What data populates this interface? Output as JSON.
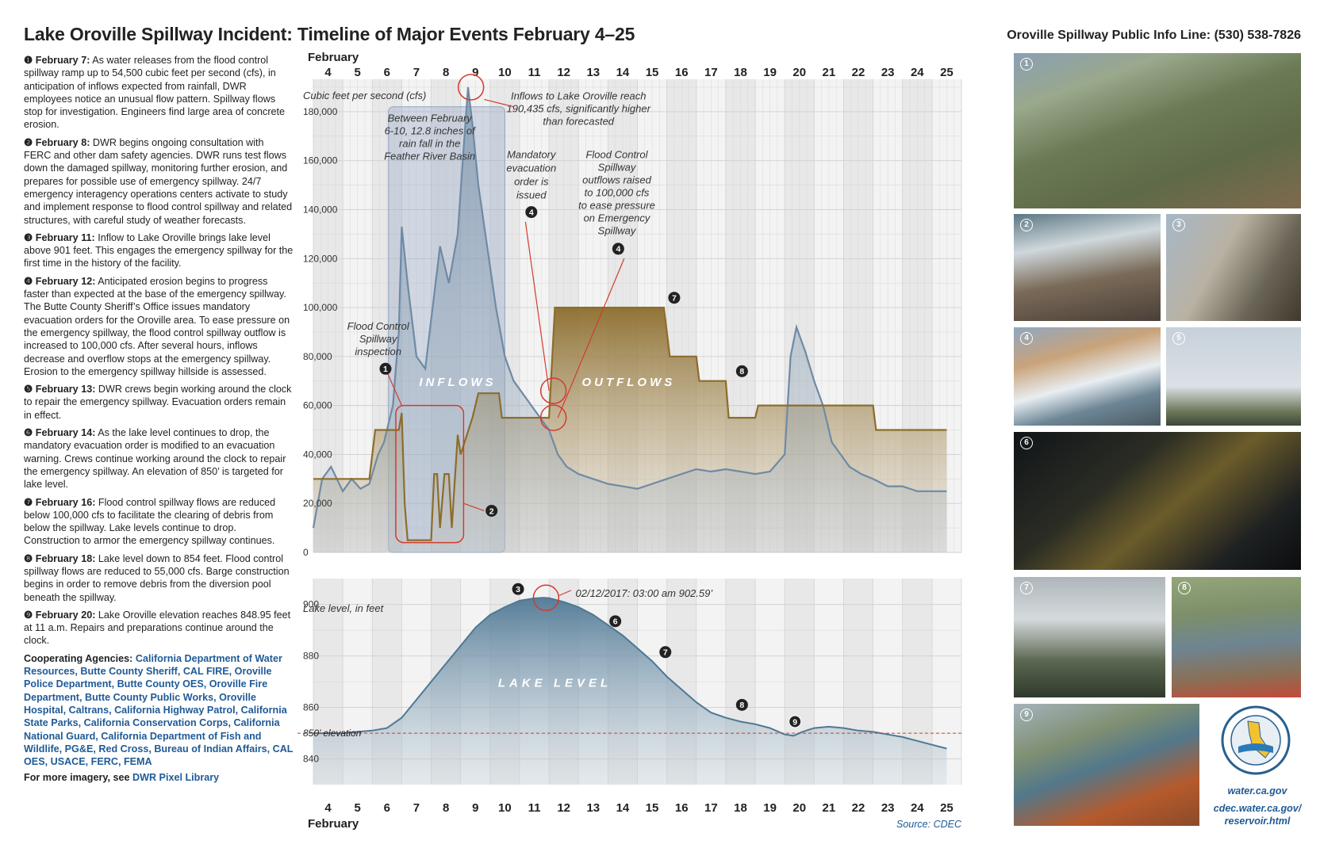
{
  "title": "Lake Oroville Spillway Incident: Timeline of Major Events February 4–25",
  "info_line": {
    "label": "Oroville Spillway Public Info Line:",
    "phone": "(530) 538-7826"
  },
  "events": [
    {
      "num": "❶",
      "date": "February 7:",
      "text": "As water releases from the flood control spillway ramp up to 54,500 cubic feet per second (cfs), in anticipation of inflows expected from rainfall, DWR employees notice an unusual flow pattern. Spillway flows stop for investigation. Engineers find large area of concrete erosion."
    },
    {
      "num": "❷",
      "date": "February 8:",
      "text": "DWR begins ongoing consultation with FERC and other dam safety agencies. DWR runs test flows down the damaged spillway, monitoring further erosion, and prepares for possible use of emergency spillway. 24/7 emergency interagency operations centers activate to study and implement response to flood control spillway and related structures, with careful study of weather forecasts."
    },
    {
      "num": "❸",
      "date": "February 11:",
      "text": "Inflow to Lake Oroville brings lake level above 901 feet. This engages the emergency spillway for the first time in the history of the facility."
    },
    {
      "num": "❹",
      "date": "February 12:",
      "text": "Anticipated erosion begins to progress faster than expected at the base of the emergency spillway. The Butte County Sheriff’s Office issues mandatory evacuation orders for the Oroville area. To ease pressure on the emergency spillway, the flood control spillway outflow is increased to 100,000 cfs. After several hours, inflows decrease and overflow stops at the emergency spillway. Erosion to the emergency spillway hillside is assessed."
    },
    {
      "num": "❺",
      "date": "February 13:",
      "text": "DWR crews begin working around the clock to repair the emergency spillway. Evacuation orders remain in effect."
    },
    {
      "num": "❻",
      "date": "February 14:",
      "text": "As the lake level continues to drop, the mandatory evacuation order is modified to an evacuation warning. Crews continue working around the clock to repair the emergency spillway. An elevation of 850’ is targeted for lake level."
    },
    {
      "num": "❼",
      "date": "February 16:",
      "text": "Flood control spillway flows are reduced below 100,000 cfs to facilitate the clearing of debris from below the spillway. Lake levels continue to drop. Construction to armor the emergency spillway continues."
    },
    {
      "num": "❽",
      "date": "February 18:",
      "text": "Lake level down to 854 feet. Flood control spillway flows are reduced to 55,000 cfs. Barge construction begins in order to remove debris from the diversion pool beneath the spillway."
    },
    {
      "num": "❾",
      "date": "February 20:",
      "text": "Lake Oroville elevation reaches 848.95 feet at 11 a.m. Repairs and preparations continue around the clock."
    }
  ],
  "agencies_label": "Cooperating Agencies:",
  "agencies": "California Department of Water Resources, Butte County Sheriff, CAL FIRE, Oroville Police Department, Butte County OES, Oroville Fire Department, Butte County Public Works, Oroville Hospital, Caltrans, California Highway Patrol, California State Parks, California Conservation Corps, California National Guard, California Department of Fish and Wildlife, PG&E, Red Cross, Bureau of Indian Affairs, CAL OES, USACE, FERC, FEMA",
  "more_label": "For more imagery, see",
  "more_link": "DWR Pixel Library",
  "links": [
    "water.ca.gov",
    "cdec.water.ca.gov/",
    "reservoir.html"
  ],
  "photo_numbers": [
    "1",
    "2",
    "3",
    "4",
    "5",
    "6",
    "7",
    "8",
    "9"
  ],
  "colors": {
    "inflow": "#6f8aa5",
    "outflow": "#8c6d2c",
    "lake": "#4f7894",
    "marker": "#d23b2e",
    "link": "#1f5a96"
  },
  "chart_data": [
    {
      "type": "area",
      "axis_top_label": "February",
      "ylabel": "Cubic feet per second (cfs)",
      "x_ticks": [
        "4",
        "5",
        "6",
        "7",
        "8",
        "9",
        "10",
        "11",
        "12",
        "13",
        "14",
        "15",
        "16",
        "17",
        "18",
        "19",
        "20",
        "21",
        "22",
        "23",
        "24",
        "25"
      ],
      "y_ticks": [
        "0",
        "20,000",
        "40,000",
        "60,000",
        "80,000",
        "100,000",
        "120,000",
        "140,000",
        "160,000",
        "180,000"
      ],
      "ylim": [
        0,
        190000
      ],
      "xlim": [
        4,
        26
      ],
      "series": [
        {
          "name": "INFLOWS",
          "x": [
            4,
            4.3,
            4.6,
            5,
            5.3,
            5.6,
            5.9,
            6.2,
            6.4,
            6.7,
            6.9,
            7.0,
            7.2,
            7.5,
            7.8,
            8.0,
            8.3,
            8.6,
            8.9,
            9.1,
            9.25,
            9.4,
            9.6,
            9.9,
            10.2,
            10.5,
            10.8,
            11.1,
            11.4,
            11.7,
            12.0,
            12.3,
            12.6,
            13,
            13.5,
            14,
            14.5,
            15,
            15.5,
            16,
            16.5,
            17,
            17.5,
            18,
            18.5,
            19,
            19.5,
            20,
            20.2,
            20.4,
            20.7,
            21,
            21.3,
            21.6,
            21.9,
            22.2,
            22.6,
            23,
            23.5,
            24,
            24.5,
            25,
            25.5
          ],
          "y": [
            10000,
            30000,
            35000,
            25000,
            30000,
            26000,
            28000,
            40000,
            45000,
            60000,
            90000,
            133000,
            110000,
            80000,
            75000,
            95000,
            125000,
            110000,
            130000,
            165000,
            190000,
            175000,
            150000,
            125000,
            100000,
            80000,
            70000,
            65000,
            60000,
            55000,
            50000,
            40000,
            35000,
            32000,
            30000,
            28000,
            27000,
            26000,
            28000,
            30000,
            32000,
            34000,
            33000,
            34000,
            33000,
            32000,
            33000,
            40000,
            80000,
            92000,
            82000,
            70000,
            60000,
            45000,
            40000,
            35000,
            32000,
            30000,
            27000,
            27000,
            25000,
            25000,
            25000
          ]
        },
        {
          "name": "OUTFLOWS",
          "x": [
            4,
            5.9,
            6.1,
            6.9,
            7.0,
            7.1,
            7.2,
            7.3,
            8.0,
            8.1,
            8.2,
            8.3,
            8.45,
            8.6,
            8.7,
            8.9,
            9.0,
            9.4,
            9.6,
            10.3,
            10.4,
            12.0,
            12.2,
            15.9,
            16.1,
            17.0,
            17.1,
            18.0,
            18.1,
            19.0,
            19.1,
            23.0,
            23.1,
            25.5
          ],
          "y": [
            30000,
            30000,
            50000,
            50000,
            57000,
            20000,
            5000,
            5000,
            5000,
            32000,
            32000,
            10000,
            32000,
            32000,
            10000,
            48000,
            40000,
            55000,
            65000,
            65000,
            55000,
            55000,
            100000,
            100000,
            80000,
            80000,
            70000,
            70000,
            55000,
            55000,
            60000,
            60000,
            50000,
            50000
          ]
        }
      ],
      "annotations": [
        {
          "text": "Between February 6-10, 12.8 inches of rain fall in the Feather River Basin"
        },
        {
          "text": "Inflows to Lake Oroville reach 190,435 cfs, significantly higher than forecasted"
        },
        {
          "text": "Mandatory evacuation order is issued"
        },
        {
          "text": "Flood Control Spillway outflows raised to 100,000 cfs to ease pressure on Emergency Spillway"
        },
        {
          "text": "Flood Control Spillway inspection"
        }
      ]
    },
    {
      "type": "area",
      "axis_bottom_label": "February",
      "ylabel": "Lake level, in feet",
      "series_label": "LAKE LEVEL",
      "x_ticks": [
        "4",
        "5",
        "6",
        "7",
        "8",
        "9",
        "10",
        "11",
        "12",
        "13",
        "14",
        "15",
        "16",
        "17",
        "18",
        "19",
        "20",
        "21",
        "22",
        "23",
        "24",
        "25"
      ],
      "y_ticks": [
        "840",
        "860",
        "880",
        "900"
      ],
      "ylim": [
        830,
        907
      ],
      "xlim": [
        4,
        26
      ],
      "reference_line": {
        "label": "850’ elevation",
        "value": 850
      },
      "series": [
        {
          "name": "LAKE LEVEL",
          "x": [
            4,
            5,
            5.5,
            6,
            6.5,
            7,
            7.5,
            8,
            8.5,
            9,
            9.5,
            10,
            10.5,
            11,
            11.5,
            11.8,
            12,
            12.5,
            13,
            13.5,
            14,
            14.5,
            15,
            15.5,
            16,
            16.5,
            17,
            17.5,
            18,
            18.5,
            19,
            19.5,
            20,
            20.3,
            20.6,
            21,
            21.5,
            22,
            22.5,
            23,
            23.5,
            24,
            24.5,
            25,
            25.5
          ],
          "y": [
            850,
            850,
            850.5,
            851,
            852,
            856,
            863,
            870,
            877,
            884,
            891,
            896,
            899,
            901.5,
            902.4,
            902.6,
            902.5,
            901,
            899,
            896,
            892,
            888,
            883,
            878,
            872,
            867,
            862,
            858,
            856,
            854.5,
            853.5,
            852,
            849.5,
            849,
            850.5,
            852,
            852.5,
            852,
            851,
            850.5,
            849.5,
            848.5,
            847,
            845.5,
            844
          ]
        }
      ],
      "annotations": [
        {
          "text": "02/12/2017: 03:00 am 902.59’"
        }
      ]
    }
  ],
  "source": "Source: CDEC"
}
